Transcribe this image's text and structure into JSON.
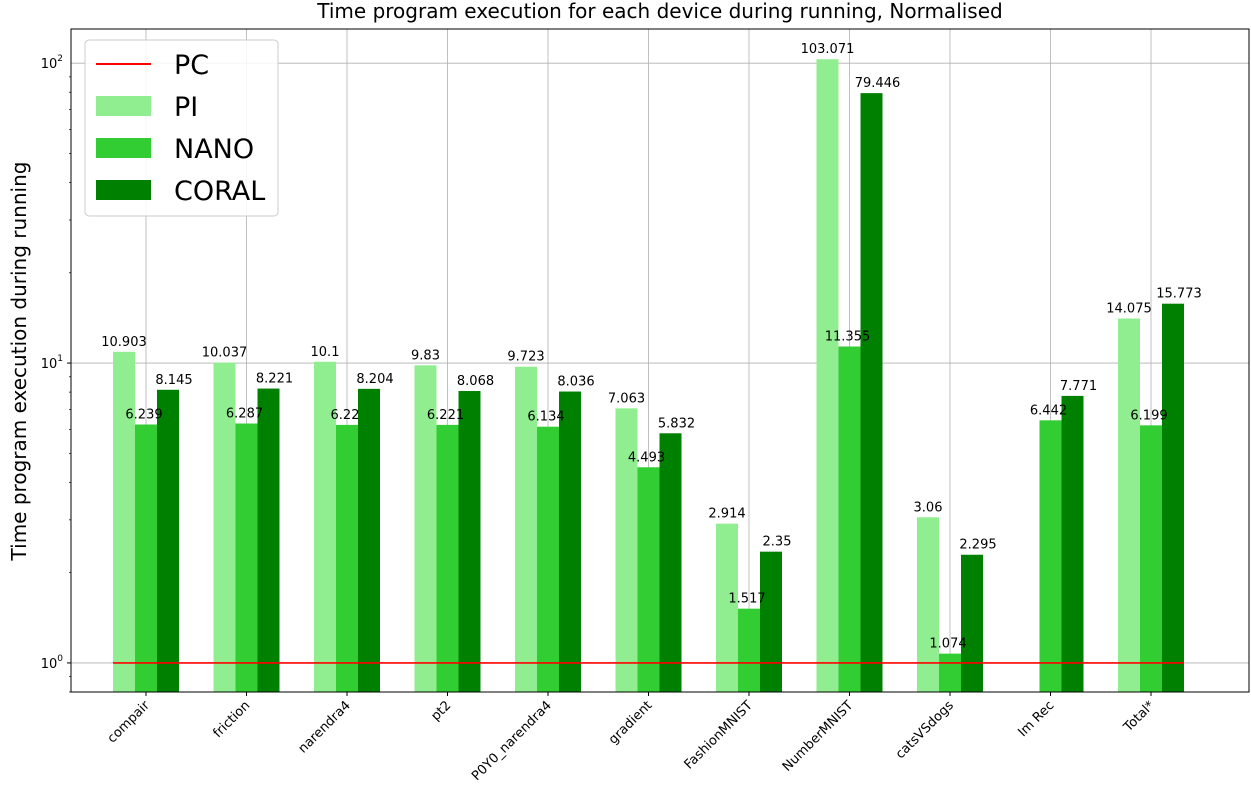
{
  "chart_data": {
    "type": "bar",
    "title": "Time program execution for each device during running, Normalised",
    "ylabel": "Time program execution during running",
    "xlabel": "",
    "yscale": "log",
    "ylim": [
      0.8,
      130
    ],
    "y_ticks": [
      {
        "value": 1,
        "base": "10",
        "exp": "0"
      },
      {
        "value": 10,
        "base": "10",
        "exp": "1"
      },
      {
        "value": 100,
        "base": "10",
        "exp": "2"
      }
    ],
    "grid": true,
    "legend_position": "top-left",
    "categories": [
      "compair",
      "friction",
      "narendra4",
      "pt2",
      "P0Y0_narendra4",
      "gradient",
      "FashionMNIST",
      "NumberMNIST",
      "catsVSdogs",
      "Im Rec",
      "Total*"
    ],
    "baseline": {
      "name": "PC",
      "value": 1,
      "color": "#ff0000"
    },
    "series": [
      {
        "name": "PI",
        "color": "#90ee90",
        "values": [
          10.903,
          10.037,
          10.1,
          9.83,
          9.723,
          7.063,
          2.914,
          103.071,
          3.06,
          null,
          14.075
        ],
        "labels": [
          "10.903",
          "10.037",
          "10.1",
          "9.83",
          "9.723",
          "7.063",
          "2.914",
          "103.071",
          "3.06",
          "",
          "14.075"
        ]
      },
      {
        "name": "NANO",
        "color": "#32cd32",
        "values": [
          6.239,
          6.287,
          6.22,
          6.221,
          6.134,
          4.493,
          1.517,
          11.355,
          1.074,
          6.442,
          6.199
        ],
        "labels": [
          "6.239",
          "6.287",
          "6.22",
          "6.221",
          "6.134",
          "4.493",
          "1.517",
          "11.355",
          "1.074",
          "6.442",
          "6.199"
        ]
      },
      {
        "name": "CORAL",
        "color": "#008000",
        "values": [
          8.145,
          8.221,
          8.204,
          8.068,
          8.036,
          5.832,
          2.35,
          79.446,
          2.295,
          7.771,
          15.773
        ],
        "labels": [
          "8.145",
          "8.221",
          "8.204",
          "8.068",
          "8.036",
          "5.832",
          "2.35",
          "79.446",
          "2.295",
          "7.771",
          "15.773"
        ]
      }
    ]
  }
}
